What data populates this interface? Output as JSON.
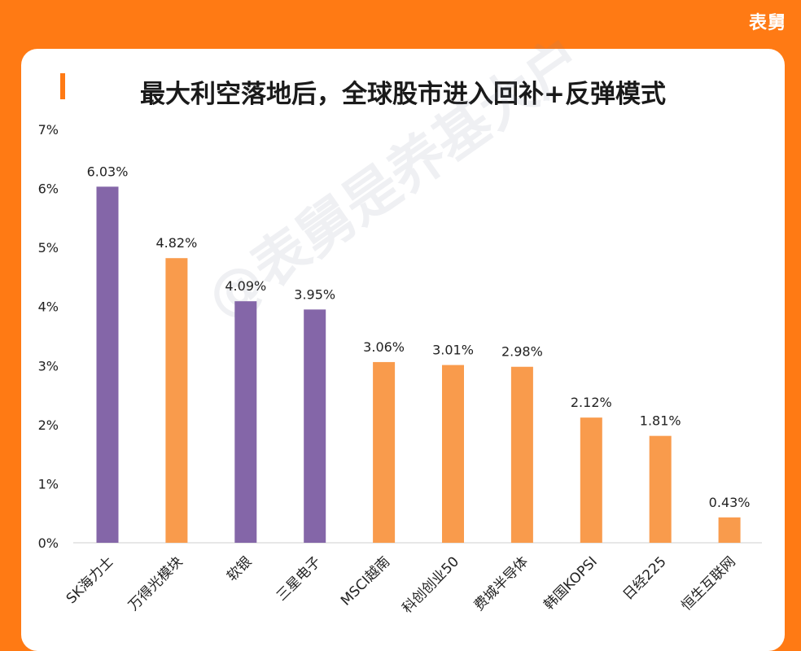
{
  "brand": "表舅",
  "title": "最大利空落地后，全球股市进入回补+反弹模式",
  "watermark": "@表舅是养基大户",
  "colors": {
    "background": "#ff7a14",
    "highlight": "#8466a8",
    "normal": "#f99b4c"
  },
  "chart_data": {
    "type": "bar",
    "categories": [
      "SK海力士",
      "万得光模块",
      "软银",
      "三星电子",
      "MSCI越南",
      "科创创业50",
      "费城半导体",
      "韩国KOPSI",
      "日经225",
      "恒生互联网"
    ],
    "values": [
      6.03,
      4.82,
      4.09,
      3.95,
      3.06,
      3.01,
      2.98,
      2.12,
      1.81,
      0.43
    ],
    "data_labels": [
      "6.03%",
      "4.82%",
      "4.09%",
      "3.95%",
      "3.06%",
      "3.01%",
      "2.98%",
      "2.12%",
      "1.81%",
      "0.43%"
    ],
    "bar_colors": [
      "#8466a8",
      "#f99b4c",
      "#8466a8",
      "#8466a8",
      "#f99b4c",
      "#f99b4c",
      "#f99b4c",
      "#f99b4c",
      "#f99b4c",
      "#f99b4c"
    ],
    "y_ticks": [
      "0%",
      "1%",
      "2%",
      "3%",
      "4%",
      "5%",
      "6%",
      "7%"
    ],
    "ylim": [
      0,
      7
    ],
    "grid": false,
    "title": "最大利空落地后，全球股市进入回补+反弹模式"
  }
}
